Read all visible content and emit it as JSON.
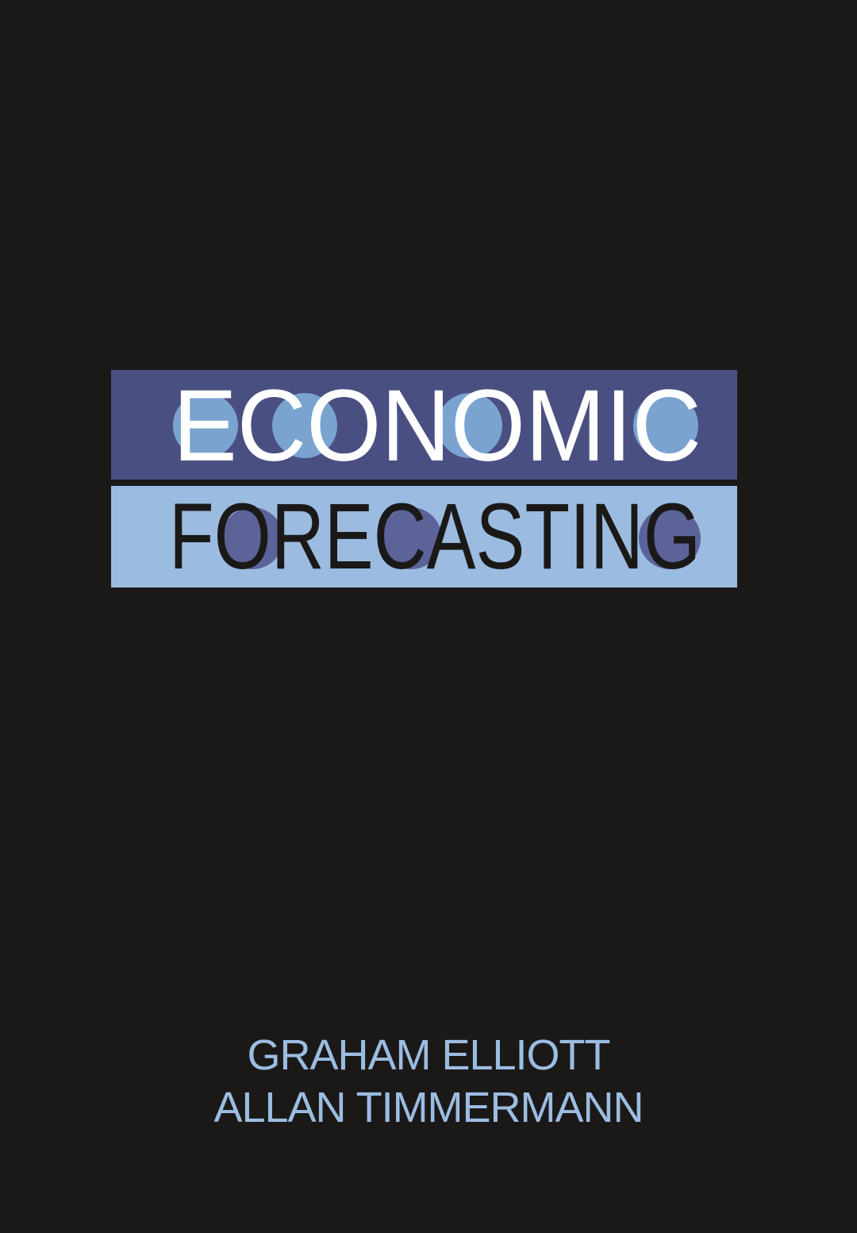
{
  "book": {
    "title_line_1": "ECONOMIC",
    "title_line_2": "FORECASTING",
    "authors": [
      "GRAHAM ELLIOTT",
      "ALLAN TIMMERMANN"
    ]
  },
  "colors": {
    "background": "#1b1918",
    "band_dark": "#4a4f82",
    "band_light": "#9bbce0",
    "letter_fill_light": "#7aa3d0",
    "letter_fill_dark": "#5c6399",
    "title_line_1_text": "#ffffff",
    "title_line_2_text": "#1b1918",
    "author_text": "#9cbde2"
  }
}
